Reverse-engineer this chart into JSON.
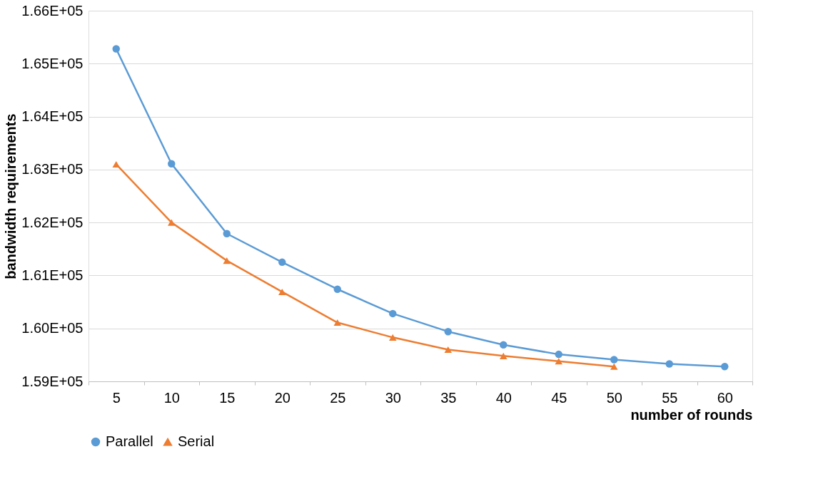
{
  "chart_data": {
    "type": "line",
    "xlabel": "number of rounds",
    "ylabel": "bandwidth requirements",
    "categories": [
      "5",
      "10",
      "15",
      "20",
      "25",
      "30",
      "35",
      "40",
      "45",
      "50",
      "55",
      "60"
    ],
    "series": [
      {
        "name": "Parallel",
        "color": "#5b9bd5",
        "marker": "circle",
        "values": [
          165280,
          163110,
          161790,
          161250,
          160740,
          160280,
          159940,
          159690,
          159510,
          159410,
          159330,
          159280
        ]
      },
      {
        "name": "Serial",
        "color": "#ed7d31",
        "marker": "triangle",
        "values": [
          163100,
          162000,
          161280,
          160690,
          160110,
          159830,
          159600,
          159480,
          159380,
          159280,
          null,
          null
        ]
      }
    ],
    "ylim": [
      159000,
      166000
    ],
    "yticks": [
      {
        "value": 159000,
        "label": "1.59E+05"
      },
      {
        "value": 160000,
        "label": "1.60E+05"
      },
      {
        "value": 161000,
        "label": "1.61E+05"
      },
      {
        "value": 162000,
        "label": "1.62E+05"
      },
      {
        "value": 163000,
        "label": "1.63E+05"
      },
      {
        "value": 164000,
        "label": "1.64E+05"
      },
      {
        "value": 165000,
        "label": "1.65E+05"
      },
      {
        "value": 166000,
        "label": "1.66E+05"
      }
    ],
    "grid": "y",
    "legend": "bottom",
    "line_style": "solid"
  }
}
